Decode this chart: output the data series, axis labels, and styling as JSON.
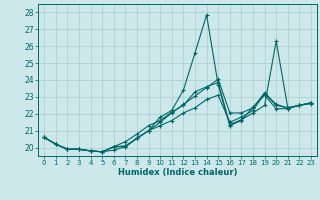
{
  "xlabel": "Humidex (Indice chaleur)",
  "bg_color": "#cce8ea",
  "grid_color": "#b0d0d4",
  "line_color": "#006666",
  "xlim": [
    -0.5,
    23.5
  ],
  "ylim": [
    19.5,
    28.5
  ],
  "yticks": [
    20,
    21,
    22,
    23,
    24,
    25,
    26,
    27,
    28
  ],
  "xticks": [
    0,
    1,
    2,
    3,
    4,
    5,
    6,
    7,
    8,
    9,
    10,
    11,
    12,
    13,
    14,
    15,
    16,
    17,
    18,
    19,
    20,
    21,
    22,
    23
  ],
  "xtick_labels": [
    "0",
    "1",
    "2",
    "3",
    "4",
    "5",
    "6",
    "7",
    "8",
    "9",
    "10",
    "11",
    "12",
    "13",
    "14",
    "15",
    "16",
    "17",
    "18",
    "19",
    "20",
    "21",
    "22",
    "23"
  ],
  "series": [
    [
      20.6,
      20.2,
      19.9,
      19.9,
      19.8,
      19.75,
      19.85,
      20.05,
      20.55,
      21.0,
      21.8,
      22.2,
      23.4,
      25.6,
      27.85,
      23.7,
      21.3,
      21.6,
      22.4,
      23.1,
      22.3,
      22.3,
      22.5,
      22.6
    ],
    [
      20.6,
      20.2,
      19.9,
      19.9,
      19.8,
      19.75,
      20.05,
      20.35,
      20.8,
      21.3,
      21.6,
      22.1,
      22.5,
      23.3,
      23.6,
      23.85,
      21.35,
      21.65,
      22.05,
      22.5,
      26.3,
      22.35,
      22.5,
      22.65
    ],
    [
      20.6,
      20.2,
      19.9,
      19.9,
      19.8,
      19.75,
      20.05,
      20.05,
      20.55,
      21.0,
      21.3,
      21.6,
      22.05,
      22.35,
      22.85,
      23.1,
      21.5,
      21.8,
      22.2,
      23.2,
      22.5,
      22.35,
      22.5,
      22.65
    ],
    [
      20.6,
      20.2,
      19.9,
      19.9,
      19.8,
      19.75,
      20.05,
      20.1,
      20.55,
      21.0,
      21.5,
      22.05,
      22.55,
      23.05,
      23.55,
      24.05,
      22.05,
      22.05,
      22.35,
      23.25,
      22.55,
      22.35,
      22.5,
      22.65
    ]
  ]
}
